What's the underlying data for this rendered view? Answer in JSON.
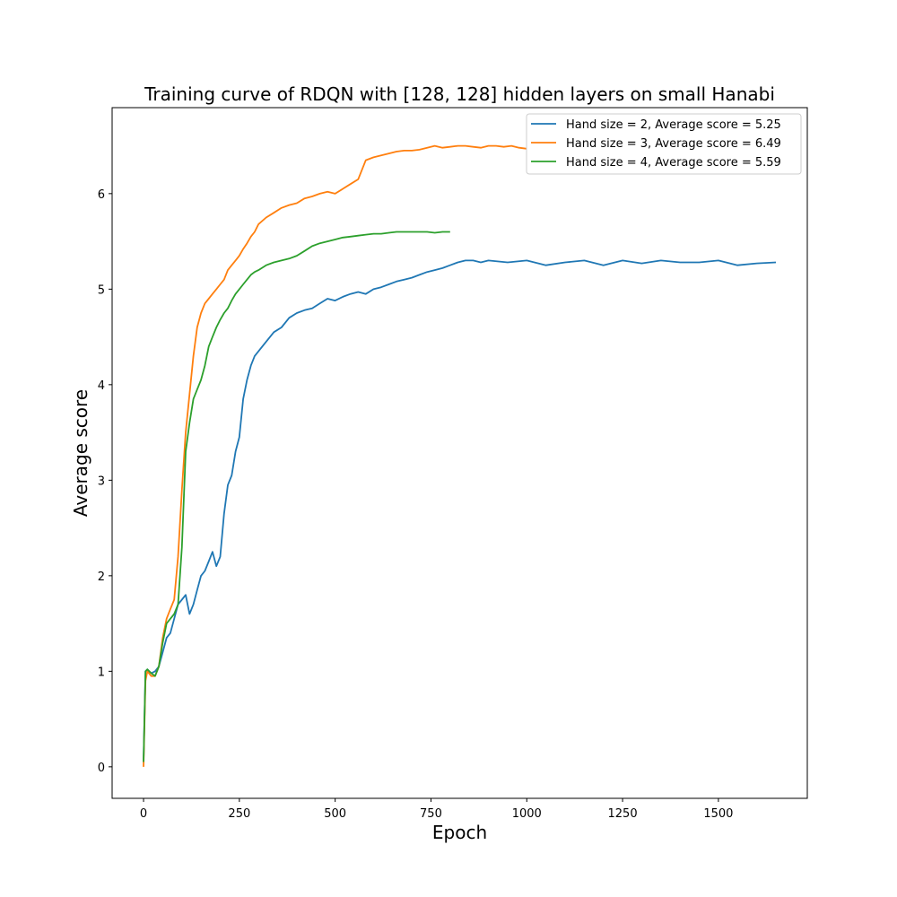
{
  "chart_data": {
    "type": "line",
    "title": "Training curve of RDQN with [128, 128] hidden layers on small Hanabi",
    "xlabel": "Epoch",
    "ylabel": "Average score",
    "xlim": [
      -82,
      1732
    ],
    "ylim": [
      -0.33,
      6.9
    ],
    "xticks": [
      0,
      250,
      500,
      750,
      1000,
      1250,
      1500
    ],
    "yticks": [
      0,
      1,
      2,
      3,
      4,
      5,
      6
    ],
    "xtick_labels": [
      "0",
      "250",
      "500",
      "750",
      "1000",
      "1250",
      "1500"
    ],
    "ytick_labels": [
      "0",
      "1",
      "2",
      "3",
      "4",
      "5",
      "6"
    ],
    "grid": false,
    "legend_position": "top-right",
    "series": [
      {
        "name": "Hand size = 2, Average score = 5.25",
        "color": "#1f77b4",
        "x": [
          0,
          5,
          10,
          20,
          30,
          40,
          50,
          60,
          70,
          80,
          90,
          100,
          110,
          120,
          130,
          140,
          150,
          160,
          170,
          180,
          190,
          200,
          210,
          220,
          230,
          240,
          250,
          260,
          270,
          280,
          290,
          300,
          320,
          340,
          360,
          380,
          400,
          420,
          440,
          460,
          480,
          500,
          520,
          540,
          560,
          580,
          600,
          620,
          640,
          660,
          680,
          700,
          720,
          740,
          760,
          780,
          800,
          820,
          840,
          860,
          880,
          900,
          950,
          1000,
          1050,
          1100,
          1150,
          1200,
          1250,
          1300,
          1350,
          1400,
          1450,
          1500,
          1550,
          1600,
          1650
        ],
        "y": [
          0.05,
          1.0,
          1.02,
          0.98,
          1.0,
          1.05,
          1.2,
          1.35,
          1.4,
          1.55,
          1.7,
          1.75,
          1.8,
          1.6,
          1.7,
          1.85,
          2.0,
          2.05,
          2.15,
          2.25,
          2.1,
          2.2,
          2.65,
          2.95,
          3.05,
          3.3,
          3.45,
          3.85,
          4.05,
          4.2,
          4.3,
          4.35,
          4.45,
          4.55,
          4.6,
          4.7,
          4.75,
          4.78,
          4.8,
          4.85,
          4.9,
          4.88,
          4.92,
          4.95,
          4.97,
          4.95,
          5.0,
          5.02,
          5.05,
          5.08,
          5.1,
          5.12,
          5.15,
          5.18,
          5.2,
          5.22,
          5.25,
          5.28,
          5.3,
          5.3,
          5.28,
          5.3,
          5.28,
          5.3,
          5.25,
          5.28,
          5.3,
          5.25,
          5.3,
          5.27,
          5.3,
          5.28,
          5.28,
          5.3,
          5.25,
          5.27,
          5.28
        ]
      },
      {
        "name": "Hand size = 3, Average score = 6.49",
        "color": "#ff7f0e",
        "x": [
          0,
          5,
          10,
          20,
          30,
          40,
          50,
          60,
          70,
          80,
          90,
          100,
          110,
          120,
          130,
          140,
          150,
          160,
          170,
          180,
          190,
          200,
          210,
          220,
          230,
          240,
          250,
          260,
          270,
          280,
          290,
          300,
          320,
          340,
          360,
          380,
          400,
          420,
          440,
          460,
          480,
          500,
          520,
          540,
          560,
          580,
          600,
          620,
          640,
          660,
          680,
          700,
          720,
          740,
          760,
          780,
          800,
          820,
          840,
          860,
          880,
          900,
          920,
          940,
          960,
          980,
          1000
        ],
        "y": [
          0.0,
          0.9,
          1.0,
          0.95,
          0.95,
          1.05,
          1.35,
          1.55,
          1.65,
          1.75,
          2.2,
          2.9,
          3.5,
          3.9,
          4.3,
          4.6,
          4.75,
          4.85,
          4.9,
          4.95,
          5.0,
          5.05,
          5.1,
          5.2,
          5.25,
          5.3,
          5.35,
          5.42,
          5.48,
          5.55,
          5.6,
          5.68,
          5.75,
          5.8,
          5.85,
          5.88,
          5.9,
          5.95,
          5.97,
          6.0,
          6.02,
          6.0,
          6.05,
          6.1,
          6.15,
          6.35,
          6.38,
          6.4,
          6.42,
          6.44,
          6.45,
          6.45,
          6.46,
          6.48,
          6.5,
          6.48,
          6.49,
          6.5,
          6.5,
          6.49,
          6.48,
          6.5,
          6.5,
          6.49,
          6.5,
          6.48,
          6.47
        ]
      },
      {
        "name": "Hand size = 4, Average score = 5.59",
        "color": "#2ca02c",
        "x": [
          0,
          5,
          10,
          20,
          30,
          40,
          50,
          60,
          70,
          80,
          90,
          100,
          110,
          120,
          130,
          140,
          150,
          160,
          170,
          180,
          190,
          200,
          210,
          220,
          230,
          240,
          250,
          260,
          270,
          280,
          290,
          300,
          320,
          340,
          360,
          380,
          400,
          420,
          440,
          460,
          480,
          500,
          520,
          540,
          560,
          580,
          600,
          620,
          640,
          660,
          680,
          700,
          720,
          740,
          760,
          780,
          800
        ],
        "y": [
          0.05,
          1.0,
          1.02,
          0.98,
          0.95,
          1.05,
          1.3,
          1.5,
          1.55,
          1.6,
          1.7,
          2.3,
          3.3,
          3.6,
          3.85,
          3.95,
          4.05,
          4.2,
          4.4,
          4.5,
          4.6,
          4.68,
          4.75,
          4.8,
          4.88,
          4.95,
          5.0,
          5.05,
          5.1,
          5.15,
          5.18,
          5.2,
          5.25,
          5.28,
          5.3,
          5.32,
          5.35,
          5.4,
          5.45,
          5.48,
          5.5,
          5.52,
          5.54,
          5.55,
          5.56,
          5.57,
          5.58,
          5.58,
          5.59,
          5.6,
          5.6,
          5.6,
          5.6,
          5.6,
          5.59,
          5.6,
          5.6
        ]
      }
    ]
  }
}
